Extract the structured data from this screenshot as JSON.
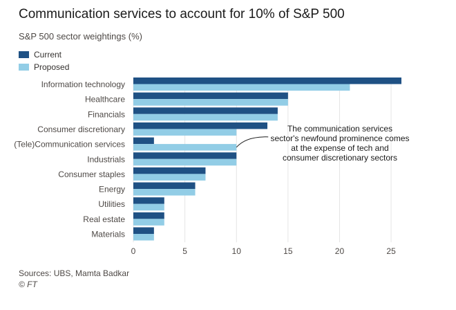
{
  "title": "Communication services to account for 10% of S&P 500",
  "subtitle": "S&P 500 sector weightings (%)",
  "colors": {
    "current": "#1f5184",
    "proposed": "#92cde6",
    "grid": "#e4e4e4",
    "text": "#4d4845"
  },
  "legend": {
    "items": [
      {
        "label": "Current",
        "color": "#1f5184"
      },
      {
        "label": "Proposed",
        "color": "#92cde6"
      }
    ]
  },
  "chart_data": {
    "type": "bar",
    "orientation": "horizontal",
    "categories": [
      "Information technology",
      "Healthcare",
      "Financials",
      "Consumer discretionary",
      "(Tele)Communication services",
      "Industrials",
      "Consumer staples",
      "Energy",
      "Utilities",
      "Real estate",
      "Materials"
    ],
    "series": [
      {
        "name": "Current",
        "values": [
          26,
          15,
          14,
          13,
          2,
          10,
          7,
          6,
          3,
          3,
          2
        ]
      },
      {
        "name": "Proposed",
        "values": [
          21,
          15,
          14,
          10,
          10,
          10,
          7,
          6,
          3,
          3,
          2
        ]
      }
    ],
    "xlim": [
      0,
      26
    ],
    "xticks": [
      0,
      5,
      10,
      15,
      20,
      25
    ],
    "grid": "vertical",
    "legend_position": "top-left",
    "annotation": {
      "lines": [
        "The communication services",
        "sector's newfound prominence comes",
        "at the expense of tech and",
        "consumer discretionary sectors"
      ],
      "target_category": "(Tele)Communication services",
      "target_series": "Proposed",
      "target_value": 10
    }
  },
  "footer": {
    "source": "Sources: UBS, Mamta Badkar",
    "copyright": "© FT"
  }
}
